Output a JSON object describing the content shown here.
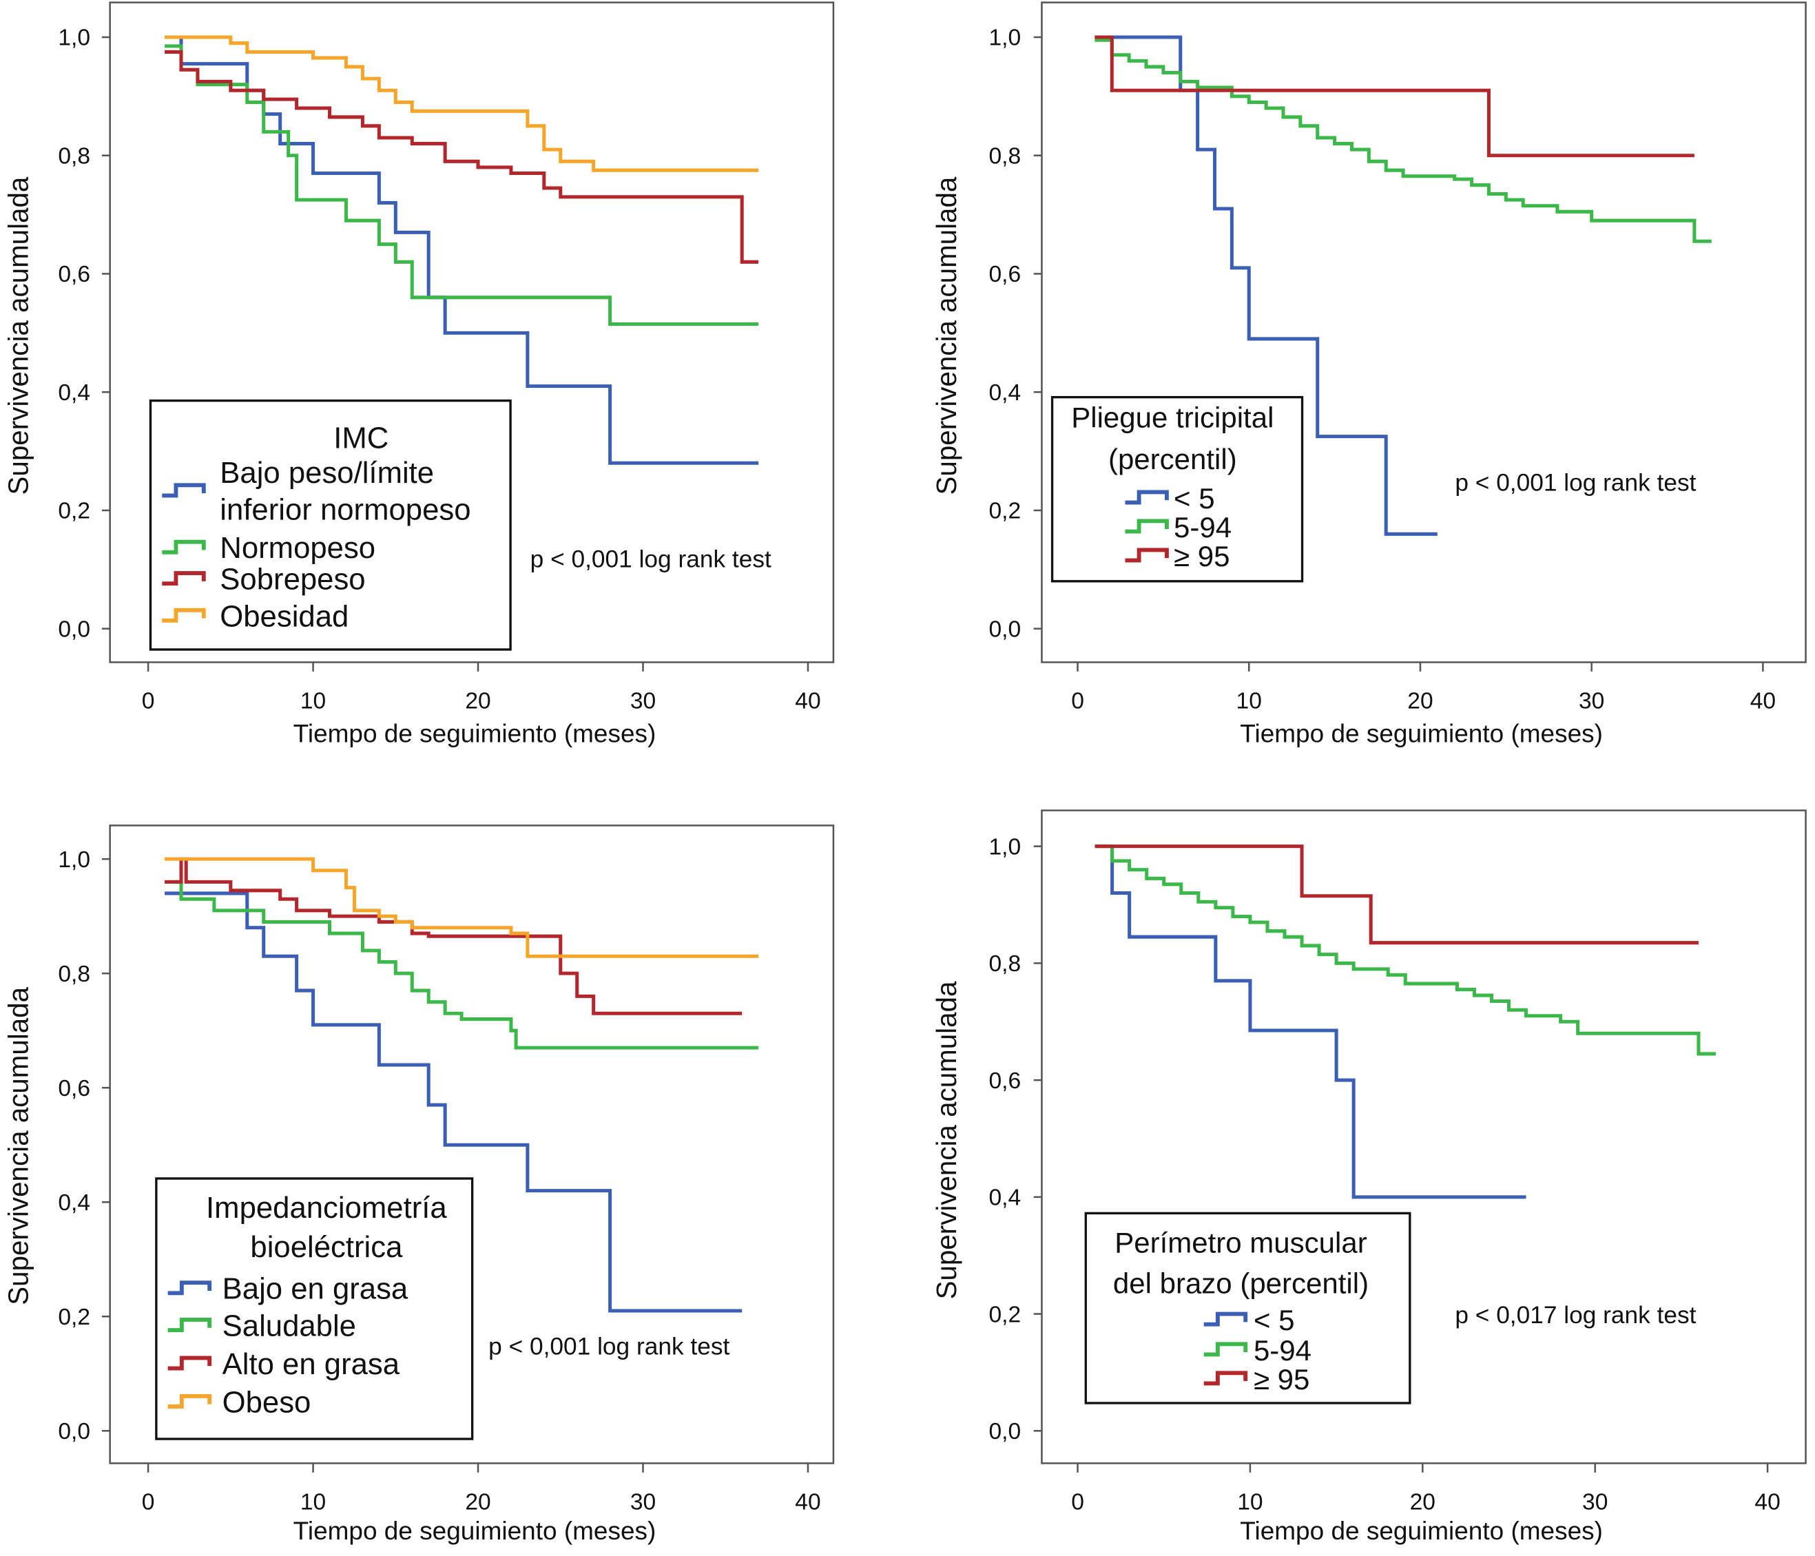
{
  "colors": {
    "blue": "#3a5fb4",
    "green": "#3cb84a",
    "red": "#b3262b",
    "orange": "#f5a52a",
    "axis": "#555555"
  },
  "chart_data": [
    {
      "type": "line",
      "step": true,
      "xlabel": "Tiempo de seguimiento (meses)",
      "ylabel": "Supervivencia acumulada",
      "xlim": [
        -2,
        42
      ],
      "ylim": [
        0,
        1
      ],
      "xticks": [
        "0",
        "10",
        "20",
        "30",
        "40"
      ],
      "yticks": [
        "0,0",
        "0,2",
        "0,4",
        "0,6",
        "0,8",
        "1,0"
      ],
      "legend_title": [
        "IMC"
      ],
      "annotation": "p < 0,001 log rank test",
      "series": [
        {
          "name": "Bajo peso/límite inferior normopeso",
          "color": "blue",
          "end": 37,
          "steps": [
            [
              1,
              1.0
            ],
            [
              2,
              0.955
            ],
            [
              6,
              0.91
            ],
            [
              7,
              0.87
            ],
            [
              8,
              0.82
            ],
            [
              10,
              0.77
            ],
            [
              14,
              0.72
            ],
            [
              15,
              0.67
            ],
            [
              17,
              0.56
            ],
            [
              18,
              0.5
            ],
            [
              23,
              0.41
            ],
            [
              28,
              0.28
            ]
          ]
        },
        {
          "name": "Normopeso",
          "color": "green",
          "end": 37,
          "steps": [
            [
              1,
              0.985
            ],
            [
              2,
              0.945
            ],
            [
              3,
              0.92
            ],
            [
              6,
              0.89
            ],
            [
              7,
              0.84
            ],
            [
              8.5,
              0.8
            ],
            [
              9,
              0.725
            ],
            [
              12,
              0.69
            ],
            [
              14,
              0.65
            ],
            [
              15,
              0.62
            ],
            [
              16,
              0.56
            ],
            [
              28,
              0.515
            ]
          ]
        },
        {
          "name": "Sobrepeso",
          "color": "red",
          "end": 37,
          "steps": [
            [
              1,
              0.975
            ],
            [
              2,
              0.945
            ],
            [
              3,
              0.925
            ],
            [
              5,
              0.91
            ],
            [
              7,
              0.895
            ],
            [
              9,
              0.88
            ],
            [
              11,
              0.865
            ],
            [
              13,
              0.85
            ],
            [
              14,
              0.83
            ],
            [
              16,
              0.82
            ],
            [
              18,
              0.79
            ],
            [
              20,
              0.78
            ],
            [
              22,
              0.77
            ],
            [
              24,
              0.745
            ],
            [
              25,
              0.73
            ],
            [
              36,
              0.62
            ]
          ]
        },
        {
          "name": "Obesidad",
          "color": "orange",
          "end": 37,
          "steps": [
            [
              1,
              1.0
            ],
            [
              5,
              0.99
            ],
            [
              6,
              0.975
            ],
            [
              10,
              0.965
            ],
            [
              12,
              0.95
            ],
            [
              13,
              0.93
            ],
            [
              14,
              0.91
            ],
            [
              15,
              0.89
            ],
            [
              16,
              0.875
            ],
            [
              23,
              0.85
            ],
            [
              24,
              0.81
            ],
            [
              25,
              0.79
            ],
            [
              27,
              0.775
            ]
          ]
        }
      ]
    },
    {
      "type": "line",
      "step": true,
      "xlabel": "Tiempo de seguimiento (meses)",
      "ylabel": "Supervivencia acumulada",
      "xlim": [
        -2,
        42
      ],
      "ylim": [
        0,
        1
      ],
      "xticks": [
        "0",
        "10",
        "20",
        "30",
        "40"
      ],
      "yticks": [
        "0,0",
        "0,2",
        "0,4",
        "0,6",
        "0,8",
        "1,0"
      ],
      "legend_title": [
        "Pliegue tricipital",
        "(percentil)"
      ],
      "annotation": "p < 0,001 log rank test",
      "series": [
        {
          "name": "< 5",
          "color": "blue",
          "end": 21,
          "steps": [
            [
              1,
              1.0
            ],
            [
              6,
              0.91
            ],
            [
              7,
              0.81
            ],
            [
              8,
              0.71
            ],
            [
              9,
              0.61
            ],
            [
              10,
              0.49
            ],
            [
              14,
              0.325
            ],
            [
              18,
              0.16
            ]
          ]
        },
        {
          "name": "5-94",
          "color": "green",
          "end": 37,
          "steps": [
            [
              1,
              0.995
            ],
            [
              2,
              0.97
            ],
            [
              3,
              0.96
            ],
            [
              4,
              0.95
            ],
            [
              5,
              0.94
            ],
            [
              6,
              0.925
            ],
            [
              7,
              0.915
            ],
            [
              9,
              0.9
            ],
            [
              10,
              0.89
            ],
            [
              11,
              0.88
            ],
            [
              12,
              0.865
            ],
            [
              13,
              0.85
            ],
            [
              14,
              0.83
            ],
            [
              15,
              0.82
            ],
            [
              16,
              0.81
            ],
            [
              17,
              0.79
            ],
            [
              18,
              0.775
            ],
            [
              19,
              0.765
            ],
            [
              22,
              0.76
            ],
            [
              23,
              0.75
            ],
            [
              24,
              0.735
            ],
            [
              25,
              0.725
            ],
            [
              26,
              0.715
            ],
            [
              28,
              0.705
            ],
            [
              30,
              0.69
            ],
            [
              36,
              0.655
            ]
          ]
        },
        {
          "name": "≥ 95",
          "color": "red",
          "end": 36,
          "steps": [
            [
              1,
              1.0
            ],
            [
              2,
              0.91
            ],
            [
              24,
              0.8
            ]
          ]
        }
      ]
    },
    {
      "type": "line",
      "step": true,
      "xlabel": "Tiempo de seguimiento (meses)",
      "ylabel": "Supervivencia acumulada",
      "xlim": [
        -2,
        42
      ],
      "ylim": [
        0,
        1
      ],
      "xticks": [
        "0",
        "10",
        "20",
        "30",
        "40"
      ],
      "yticks": [
        "0,0",
        "0,2",
        "0,4",
        "0,6",
        "0,8",
        "1,0"
      ],
      "legend_title": [
        "Impedanciometría",
        "bioeléctrica"
      ],
      "annotation": "p < 0,001 log rank test",
      "series": [
        {
          "name": "Bajo en grasa",
          "color": "blue",
          "end": 36,
          "steps": [
            [
              1,
              0.94
            ],
            [
              6,
              0.88
            ],
            [
              7,
              0.83
            ],
            [
              9,
              0.77
            ],
            [
              10,
              0.71
            ],
            [
              14,
              0.64
            ],
            [
              17,
              0.57
            ],
            [
              18,
              0.5
            ],
            [
              23,
              0.42
            ],
            [
              28,
              0.21
            ]
          ]
        },
        {
          "name": "Saludable",
          "color": "green",
          "end": 37,
          "steps": [
            [
              1,
              0.96
            ],
            [
              2,
              0.93
            ],
            [
              4,
              0.91
            ],
            [
              7,
              0.89
            ],
            [
              11,
              0.87
            ],
            [
              13,
              0.84
            ],
            [
              14,
              0.82
            ],
            [
              15,
              0.8
            ],
            [
              16,
              0.77
            ],
            [
              17,
              0.75
            ],
            [
              18,
              0.73
            ],
            [
              19,
              0.72
            ],
            [
              22,
              0.7
            ],
            [
              22.3,
              0.67
            ]
          ]
        },
        {
          "name": "Alto en grasa",
          "color": "red",
          "end": 36,
          "steps": [
            [
              1,
              0.96
            ],
            [
              2,
              1.0
            ],
            [
              2.3,
              0.96
            ],
            [
              5,
              0.945
            ],
            [
              8,
              0.93
            ],
            [
              9,
              0.91
            ],
            [
              11,
              0.9
            ],
            [
              14,
              0.89
            ],
            [
              16,
              0.87
            ],
            [
              17,
              0.865
            ],
            [
              25,
              0.8
            ],
            [
              26,
              0.76
            ],
            [
              27,
              0.73
            ]
          ]
        },
        {
          "name": "Obeso",
          "color": "orange",
          "end": 37,
          "steps": [
            [
              1,
              1.0
            ],
            [
              10,
              0.98
            ],
            [
              12,
              0.95
            ],
            [
              12.5,
              0.91
            ],
            [
              14,
              0.9
            ],
            [
              15,
              0.89
            ],
            [
              16,
              0.88
            ],
            [
              22,
              0.87
            ],
            [
              23,
              0.83
            ]
          ]
        }
      ]
    },
    {
      "type": "line",
      "step": true,
      "xlabel": "Tiempo de seguimiento (meses)",
      "ylabel": "Supervivencia acumulada",
      "xlim": [
        -2,
        42
      ],
      "ylim": [
        0,
        1
      ],
      "xticks": [
        "0",
        "10",
        "20",
        "30",
        "40"
      ],
      "yticks": [
        "0,0",
        "0,2",
        "0,4",
        "0,6",
        "0,8",
        "1,0"
      ],
      "legend_title": [
        "Perímetro muscular",
        "del brazo (percentil)"
      ],
      "annotation": "p < 0,017 log rank test",
      "series": [
        {
          "name": "< 5",
          "color": "blue",
          "end": 26,
          "steps": [
            [
              1,
              1.0
            ],
            [
              2,
              0.92
            ],
            [
              3,
              0.845
            ],
            [
              8,
              0.77
            ],
            [
              10,
              0.685
            ],
            [
              15,
              0.6
            ],
            [
              16,
              0.4
            ]
          ]
        },
        {
          "name": "5-94",
          "color": "green",
          "end": 37,
          "steps": [
            [
              1,
              1.0
            ],
            [
              2,
              0.975
            ],
            [
              3,
              0.96
            ],
            [
              4,
              0.945
            ],
            [
              5,
              0.935
            ],
            [
              6,
              0.92
            ],
            [
              7,
              0.905
            ],
            [
              8,
              0.895
            ],
            [
              9,
              0.88
            ],
            [
              10,
              0.87
            ],
            [
              11,
              0.855
            ],
            [
              12,
              0.845
            ],
            [
              13,
              0.83
            ],
            [
              14,
              0.815
            ],
            [
              15,
              0.8
            ],
            [
              16,
              0.79
            ],
            [
              18,
              0.78
            ],
            [
              19,
              0.765
            ],
            [
              22,
              0.755
            ],
            [
              23,
              0.745
            ],
            [
              24,
              0.735
            ],
            [
              25,
              0.72
            ],
            [
              26,
              0.71
            ],
            [
              28,
              0.7
            ],
            [
              29,
              0.68
            ],
            [
              36,
              0.645
            ]
          ]
        },
        {
          "name": "≥ 95",
          "color": "red",
          "end": 36,
          "steps": [
            [
              1,
              1.0
            ],
            [
              13,
              0.915
            ],
            [
              17,
              0.835
            ]
          ]
        }
      ]
    }
  ]
}
